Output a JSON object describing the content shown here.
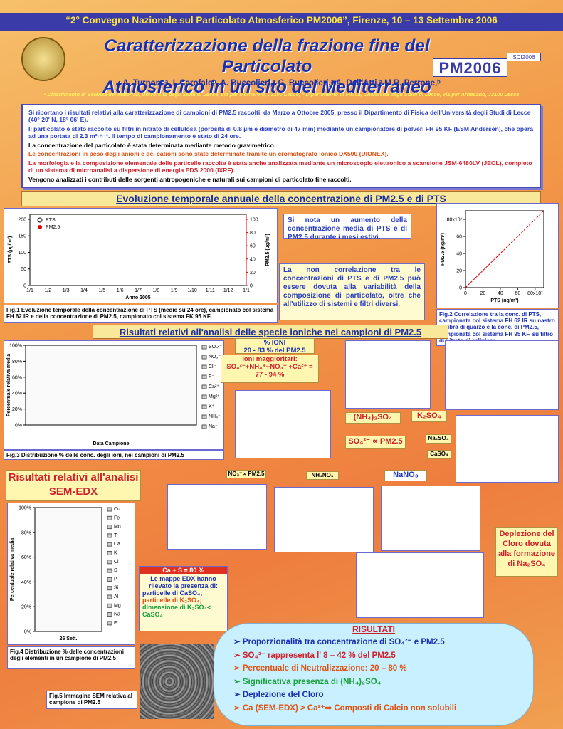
{
  "header": {
    "conference": "“2° Convegno Nazionale sul Particolato Atmosferico PM2006”, Firenze, 10 – 13 Settembre 2006",
    "title": [
      "Caratterizzazione della frazione fine del Particolato",
      "Atmosferico in un sito del Mediterraneo"
    ],
    "logo": "PM2006",
    "logo_tag": "SCI2006",
    "authors": "A. Turnoneᵃ, I. Carofaloᵇ, A. Buccolieri,ᵃ G. Buccolieri,ᵃ A. Dell'Atti,ᵃ M.R. Perrone,ᵇ",
    "affiliations": "ᵃ Dipartimento di Scienza dei Materiali, Università degli Studi di Lecce, via per Monteroni, 73100 Lecce;   ᵇ Dipartimento di Fisica, Università degli Studi di Lecce, via per Arnesano, 73100 Lecce"
  },
  "intro": [
    "Si riportano i risultati relativi alla caratterizzazione di campioni di PM2.5 raccolti, da Marzo a Ottobre 2005, presso il Dipartimento di Fisica dell'Università degli Studi di Lecce (40° 20' N, 18° 06' E).",
    "Il particolato è stato raccolto su filtri in nitrato di cellulosa (porosità di 0.8 µm e diametro di 47 mm) mediante un campionatore di polveri FH 95 KF (ESM Andersen), che opera ad una portata di 2.3 m³·h⁻¹. Il tempo di campionamento è stato di 24 ore.",
    "La concentrazione del particolato è stata determinata mediante metodo gravimetrico.",
    "Le concentrazioni in peso degli anioni e dei cationi sono state determinate tramite un cromatografo ionico DX500 (DIONEX).",
    "La morfologia e la composizione elementale delle particelle raccolte è stata anche analizzata mediante un microscopio elettronico a scansione JSM-6480LV (JEOL), completo di un sistema di microanalisi a dispersione di energia EDS 2000 (IXRF).",
    "Vengono analizzati i contributi delle sorgenti antropogeniche e naturali sui campioni di particolato fine raccolti."
  ],
  "section1": "Evoluzione temporale annuale della concentrazione di PM2.5 e di PTS",
  "fig1": {
    "ylabel": "PTS (µg/m³)",
    "y2label": "PM2.5 (µg/m³)",
    "xlabel": "Anno 2005",
    "legend": [
      "PTS",
      "PM2.5"
    ],
    "ylim": [
      0,
      215
    ],
    "yticks": [
      0,
      50,
      100,
      150,
      200
    ],
    "y2lim": [
      0,
      107.5
    ],
    "y2ticks": [
      0,
      20,
      40,
      60,
      80,
      100
    ],
    "categories": [
      "1/1",
      "1/2",
      "1/3",
      "1/4",
      "1/5",
      "1/6",
      "1/7",
      "1/8",
      "1/9",
      "1/10",
      "1/11",
      "1/12",
      "1/1"
    ],
    "caption": "Fig.1 Evoluzione temporale della concentrazione di PTS (medie su 24 ore), campionato col sistema FH 62 IR e della concentrazione di PM2.5, campionato col sistema FK 95 KF."
  },
  "note1": "Si nota un aumento della concentrazione media di PTS e di PM2.5 durante i mesi estivi.",
  "note2": "La non correlazione tra le concentrazioni di PTS e di PM2.5 può essere dovuta alla variabilità della composizione di particolato, oltre che all'utilizzo di sistemi e filtri diversi.",
  "fig2": {
    "ylabel": "PM2.5 (ng/m³)",
    "xlabel": "PTS (ng/m³)",
    "xlim": [
      0,
      90
    ],
    "ylim": [
      0,
      90
    ],
    "xticks": [
      0,
      20,
      40,
      60,
      {
        "value": 80,
        "label": "80x10³"
      }
    ],
    "yticks": [
      0,
      20,
      40,
      60,
      {
        "value": 80,
        "label": "80x10³"
      }
    ],
    "caption": "Fig.2 Correlazione tra la conc. di PTS, campionata col sistema FH 62 IR su nastro di fibra di quarzo e la conc. di PM2.5, campionata col sistema FH 95 KF, su filtro di nitrato di cellulosa."
  },
  "section2": "Risultati relativi all'analisi delle specie ioniche nei campioni di PM2.5",
  "fig3": {
    "ylabel": "Percentuale relativa media",
    "xlabel": "Data Campione",
    "ylim": [
      0,
      100
    ],
    "yticks": [
      {
        "value": 0,
        "label": "0%"
      },
      {
        "value": 20,
        "label": "20%"
      },
      {
        "value": 40,
        "label": "40%"
      },
      {
        "value": 60,
        "label": "60%"
      },
      {
        "value": 80,
        "label": "80%"
      },
      {
        "value": 100,
        "label": "100%"
      }
    ],
    "legend": [
      "SO₄²⁻",
      "NO₃⁻",
      "Cl⁻",
      "F⁻",
      "Ca²⁺",
      "Mg²⁺",
      "K⁺",
      "NH₄⁺",
      "Na⁺"
    ],
    "caption": "Fig.3 Distribuzione % delle conc. degli ioni, nei campioni di PM2.5"
  },
  "ioni": {
    "title": "% IONI",
    "range": "20 - 83 % del PM2.5",
    "major_title": "Ioni maggioritari:",
    "major": "SO₄²⁻+NH₄⁺+NO₃⁻ +Ca²⁺ =",
    "major_range": "77 - 94 %"
  },
  "tags": [
    "(NH₄)₂SO₄",
    "K₂SO₄",
    "SO₄²⁻ ∝ PM2.5",
    "Na₂SO₄",
    "CaSO₄",
    "NO₃⁻∝ PM2.5",
    "NH₄NO₃",
    "NaNO₃"
  ],
  "sem": {
    "title": "Risultati relativi all'analisi SEM-EDX",
    "ylabel": "Percentuale relativa media",
    "xlabel": "26 Sett.",
    "ylim": [
      0,
      100
    ],
    "yticks": [
      {
        "value": 0,
        "label": "0%"
      },
      {
        "value": 20,
        "label": "20%"
      },
      {
        "value": 40,
        "label": "40%"
      },
      {
        "value": 60,
        "label": "60%"
      },
      {
        "value": 80,
        "label": "80%"
      },
      {
        "value": 100,
        "label": "100%"
      }
    ],
    "legend": [
      "Cu",
      "Fe",
      "Mn",
      "Ti",
      "Ca",
      "K",
      "Cl",
      "S",
      "P",
      "Si",
      "Al",
      "Mg",
      "Na",
      "F"
    ],
    "caption": "Fig.4 Distribuzione % delle concentrazioni degli elementi in un campione di PM2.5",
    "fig5_caption": "Fig.5 Immagine SEM relativa al campione di PM2.5",
    "box_title": "Ca + S = 80 %",
    "box_text": "Le mappe EDX hanno rilevato la presenza di:",
    "box_items": [
      "particelle di CaSO₄;",
      "particelle di K₂SO₄;",
      "dimensione di K₂SO₄< CaSO₄"
    ]
  },
  "deplezione": "Deplezione del Cloro dovuta alla formazione di Na₂SO₄",
  "results": {
    "title": "RISULTATI",
    "items": [
      "Proporzionalità tra concentrazione di SO₄²⁻ e PM2.5",
      "SO₄²⁻ rappresenta l' 8 – 42 % del PM2.5",
      "Percentuale di Neutralizzazione: 20 – 80 %",
      "Significativa presenza di (NH₄)₂SO₄",
      "Deplezione del Cloro",
      "Ca (SEM-EDX) > Ca²⁺⇒ Composti di Calcio non solubili"
    ]
  }
}
